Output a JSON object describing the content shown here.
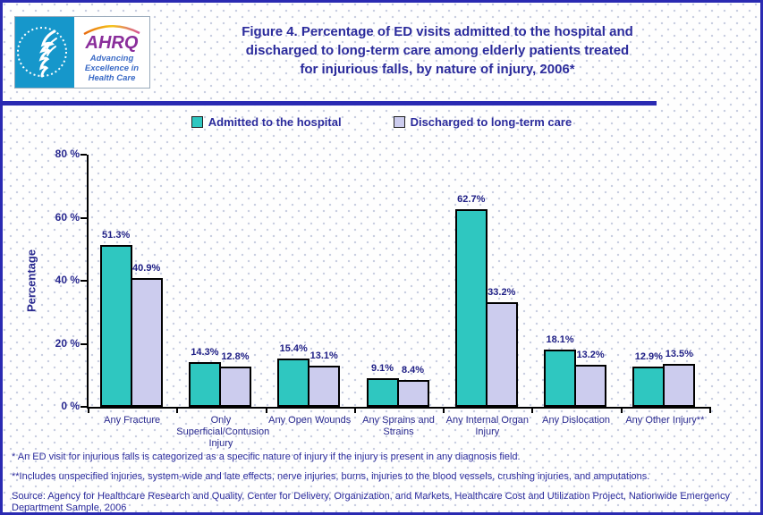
{
  "header": {
    "logo": {
      "ahrq_acronym": "AHRQ",
      "tagline": "Advancing\nExcellence in\nHealth Care"
    },
    "title": "Figure 4. Percentage of ED visits admitted to the hospital and\ndischarged to long-term care among elderly patients treated\nfor injurious falls, by nature of injury, 2006*"
  },
  "legend": {
    "items": [
      {
        "label": "Admitted to the hospital",
        "color": "#2FC7C0"
      },
      {
        "label": "Discharged to long-term care",
        "color": "#CCCCEE"
      }
    ]
  },
  "chart_data": {
    "type": "bar",
    "title": "Figure 4. Percentage of ED visits admitted to the hospital and discharged to long-term care among elderly patients treated for injurious falls, by nature of injury, 2006*",
    "categories": [
      "Any Fracture",
      "Only\nSuperficial/Contusion\nInjury",
      "Any Open Wounds",
      "Any Sprains and\nStrains",
      "Any Internal Organ\nInjury",
      "Any Dislocation",
      "Any Other Injury**"
    ],
    "series": [
      {
        "name": "Admitted to the hospital",
        "color": "#2FC7C0",
        "values": [
          51.3,
          14.3,
          15.4,
          9.1,
          62.7,
          18.1,
          12.9
        ]
      },
      {
        "name": "Discharged to long-term care",
        "color": "#CCCCEE",
        "values": [
          40.9,
          12.8,
          13.1,
          8.4,
          33.2,
          13.2,
          13.5
        ]
      }
    ],
    "ylabel": "Percentage",
    "xlabel": "",
    "ylim": [
      0,
      80
    ],
    "ytick_values": [
      0,
      20,
      40,
      60,
      80
    ],
    "ytick_labels": [
      "0 %",
      "20 %",
      "40 %",
      "60 %",
      "80 %"
    ],
    "value_suffix": "%",
    "grid": false,
    "legend_position": "top"
  },
  "footnotes": [
    "* An ED visit for injurious falls is categorized as a specific nature of injury if the injury is present in any diagnosis field.",
    "**Includes unspecified injuries, system-wide and late effects, nerve injuries, burns, injuries to the blood vessels, crushing injuries, and amputations.",
    "Source: Agency for Healthcare Research and Quality, Center for Delivery, Organization, and Markets, Healthcare Cost and Utilization Project, Nationwide Emergency Department Sample, 2006"
  ]
}
